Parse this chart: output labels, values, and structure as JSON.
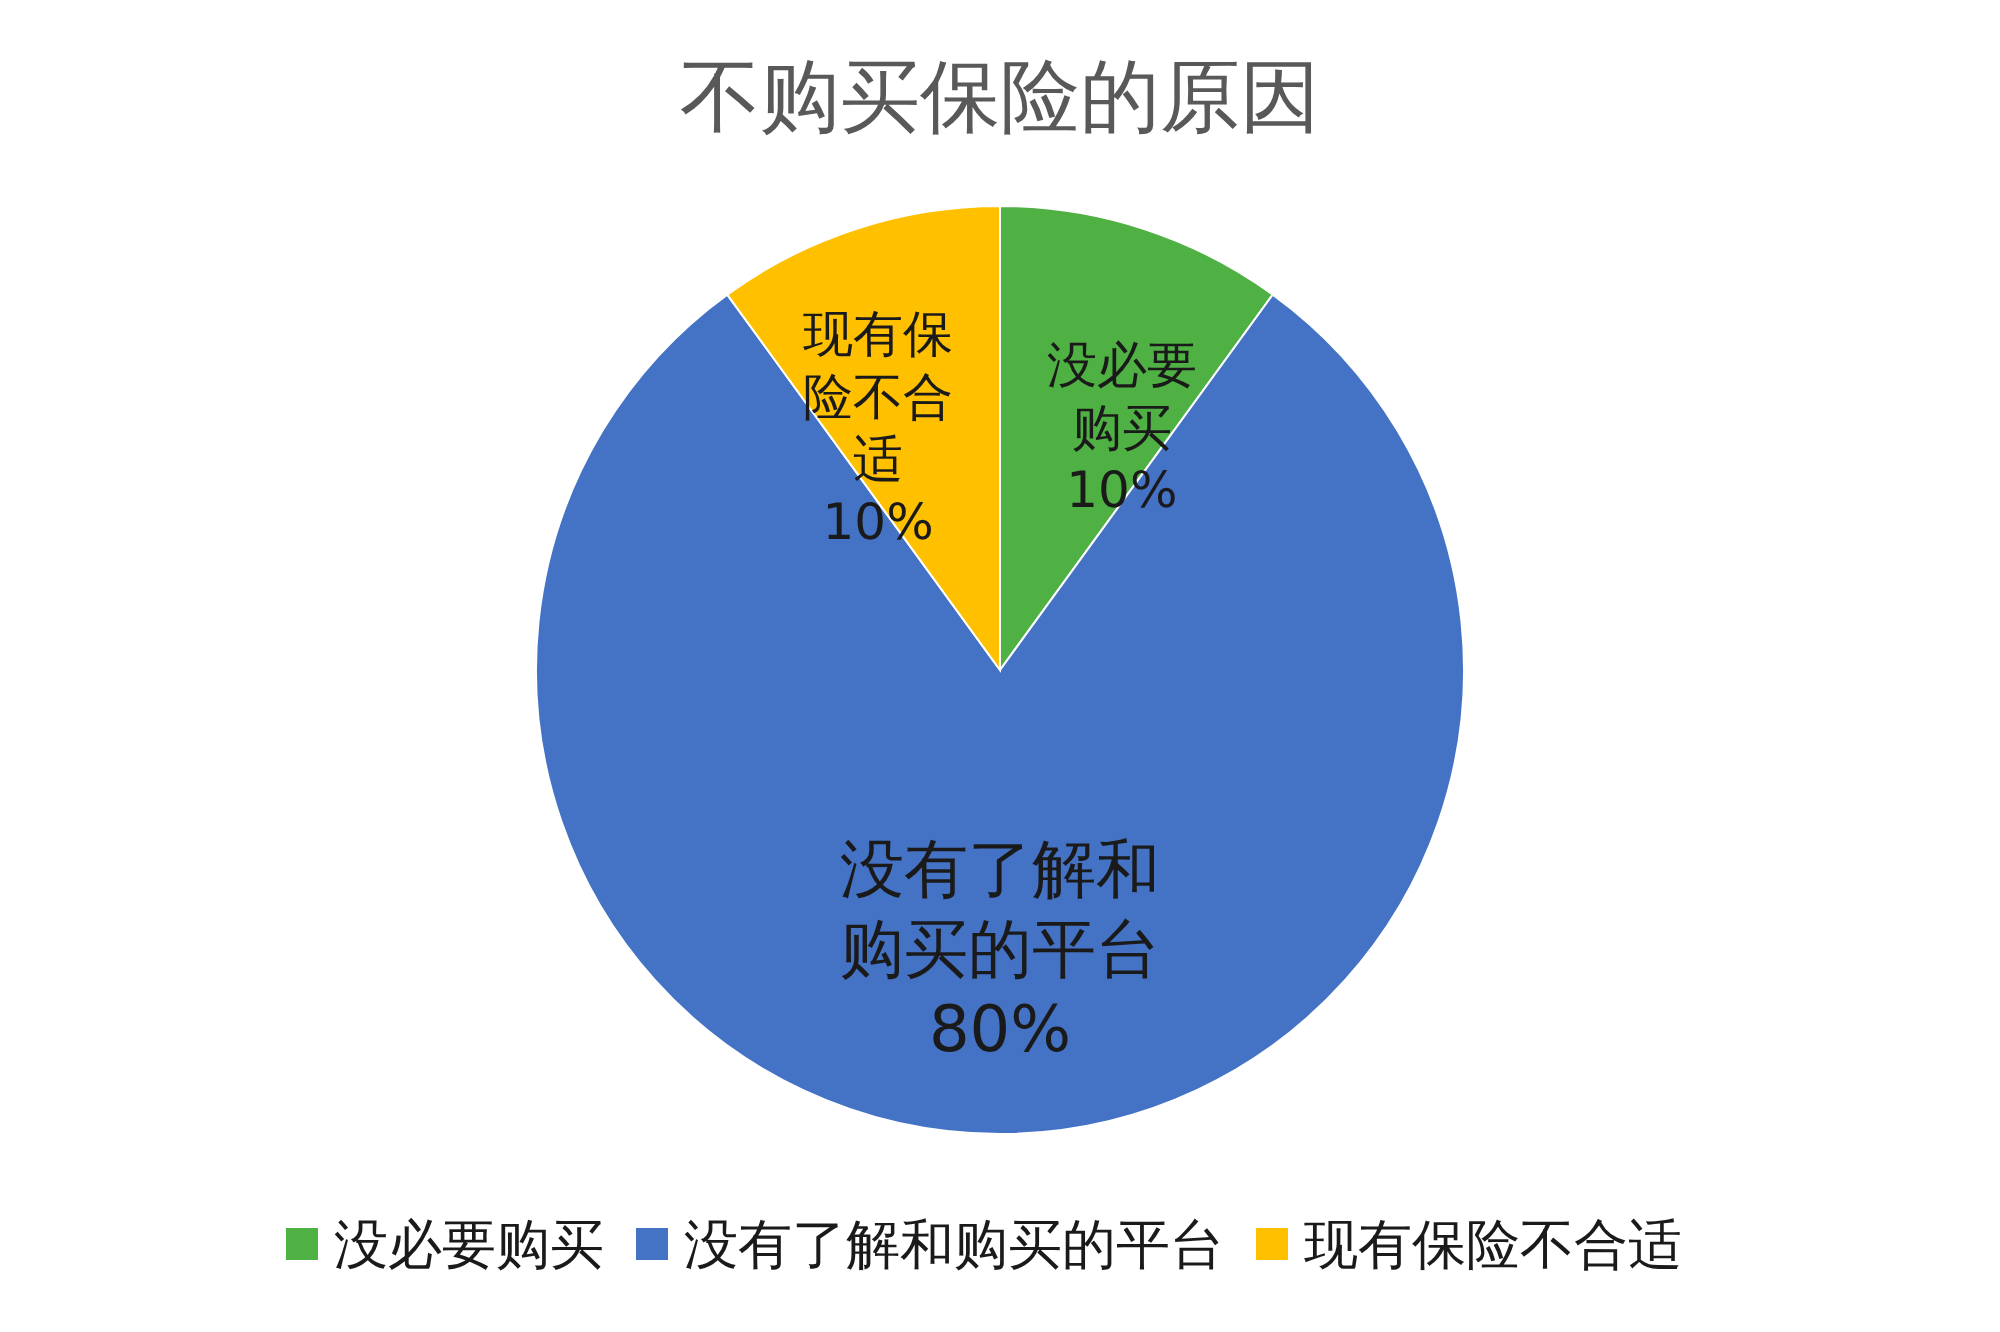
{
  "chart_data": {
    "type": "pie",
    "title": "不购买保险的原因",
    "categories": [
      "没必要购买",
      "没有了解和购买的平台",
      "现有保险不合适"
    ],
    "values": [
      10,
      80,
      10
    ],
    "colors": [
      "#4fb043",
      "#4472c4",
      "#ffc000"
    ],
    "value_labels": [
      "没必要购买10%",
      "没有了解和购买的平台80%",
      "现有保险不合适10%"
    ],
    "legend": "bottom"
  }
}
